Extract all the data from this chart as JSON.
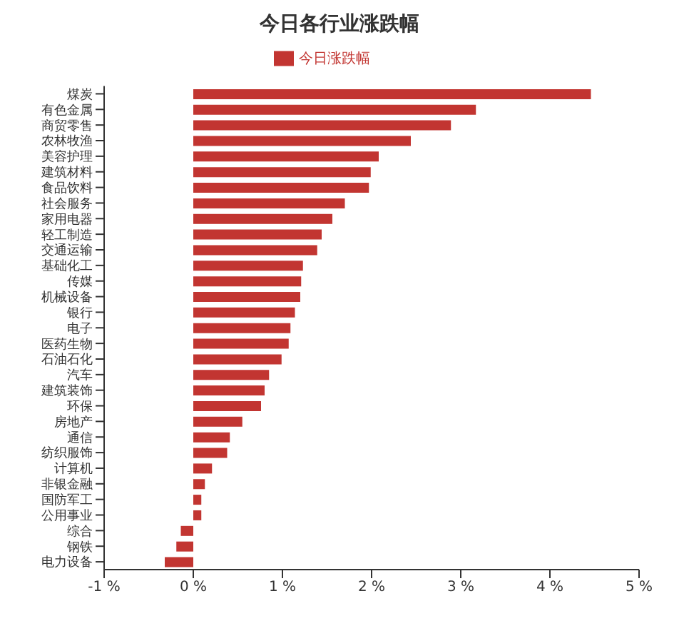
{
  "chart_data": {
    "type": "bar",
    "orientation": "horizontal",
    "title": "今日各行业涨跌幅",
    "categories": [
      "煤炭",
      "有色金属",
      "商贸零售",
      "农林牧渔",
      "美容护理",
      "建筑材料",
      "食品饮料",
      "社会服务",
      "家用电器",
      "轻工制造",
      "交通运输",
      "基础化工",
      "传媒",
      "机械设备",
      "银行",
      "电子",
      "医药生物",
      "石油石化",
      "汽车",
      "建筑装饰",
      "环保",
      "房地产",
      "通信",
      "纺织服饰",
      "计算机",
      "非银金融",
      "国防军工",
      "公用事业",
      "综合",
      "钢铁",
      "电力设备"
    ],
    "series": [
      {
        "name": "今日涨跌幅",
        "color": "#c23531",
        "values": [
          4.46,
          3.17,
          2.89,
          2.44,
          2.08,
          1.99,
          1.97,
          1.7,
          1.56,
          1.44,
          1.39,
          1.23,
          1.21,
          1.2,
          1.14,
          1.09,
          1.07,
          0.99,
          0.85,
          0.8,
          0.76,
          0.55,
          0.41,
          0.38,
          0.21,
          0.13,
          0.09,
          0.09,
          -0.14,
          -0.19,
          -0.32
        ]
      }
    ],
    "xlim": [
      -1,
      5
    ],
    "xticks": [
      {
        "value": -1,
        "label": "-1 %"
      },
      {
        "value": 0,
        "label": "0 %"
      },
      {
        "value": 1,
        "label": "1 %"
      },
      {
        "value": 2,
        "label": "2 %"
      },
      {
        "value": 3,
        "label": "3 %"
      },
      {
        "value": 4,
        "label": "4 %"
      },
      {
        "value": 5,
        "label": "5 %"
      }
    ],
    "grid": false,
    "legend": "top"
  }
}
